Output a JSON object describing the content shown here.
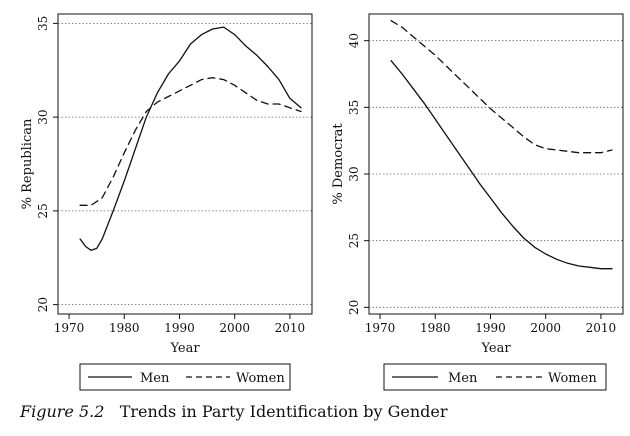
{
  "chart_data": [
    {
      "type": "line",
      "title": "",
      "xlabel": "Year",
      "ylabel": "% Republican",
      "xlim": [
        1968,
        2014
      ],
      "ylim": [
        19.5,
        35.5
      ],
      "xticks": [
        1970,
        1980,
        1990,
        2000,
        2010
      ],
      "yticks": [
        20,
        25,
        30,
        35
      ],
      "grid": "horizontal dotted",
      "series": [
        {
          "name": "Men",
          "style": "solid",
          "x": [
            1972,
            1973,
            1974,
            1975,
            1976,
            1978,
            1980,
            1982,
            1984,
            1986,
            1988,
            1990,
            1992,
            1994,
            1996,
            1998,
            2000,
            2002,
            2004,
            2006,
            2008,
            2010,
            2012
          ],
          "y": [
            23.5,
            23.1,
            22.9,
            23.0,
            23.5,
            25.0,
            26.6,
            28.3,
            30.0,
            31.3,
            32.3,
            33.0,
            33.9,
            34.4,
            34.7,
            34.8,
            34.4,
            33.8,
            33.3,
            32.7,
            32.0,
            31.0,
            30.5
          ]
        },
        {
          "name": "Women",
          "style": "dashed",
          "x": [
            1972,
            1974,
            1976,
            1978,
            1980,
            1982,
            1984,
            1986,
            1988,
            1990,
            1992,
            1994,
            1996,
            1998,
            2000,
            2002,
            2004,
            2006,
            2008,
            2010,
            2012
          ],
          "y": [
            25.3,
            25.3,
            25.7,
            26.8,
            28.1,
            29.3,
            30.3,
            30.8,
            31.1,
            31.4,
            31.7,
            32.0,
            32.1,
            32.0,
            31.7,
            31.3,
            30.9,
            30.7,
            30.7,
            30.5,
            30.3
          ]
        }
      ],
      "legend": [
        "Men",
        "Women"
      ],
      "legend_position": "bottom"
    },
    {
      "type": "line",
      "title": "",
      "xlabel": "Year",
      "ylabel": "% Democrat",
      "xlim": [
        1968,
        2014
      ],
      "ylim": [
        19.5,
        42
      ],
      "xticks": [
        1970,
        1980,
        1990,
        2000,
        2010
      ],
      "yticks": [
        20,
        25,
        30,
        35,
        40
      ],
      "grid": "horizontal dotted",
      "series": [
        {
          "name": "Men",
          "style": "solid",
          "x": [
            1972,
            1974,
            1976,
            1978,
            1980,
            1982,
            1984,
            1986,
            1988,
            1990,
            1992,
            1994,
            1996,
            1998,
            2000,
            2002,
            2004,
            2006,
            2008,
            2010,
            2012
          ],
          "y": [
            38.5,
            37.5,
            36.4,
            35.3,
            34.1,
            32.9,
            31.7,
            30.5,
            29.3,
            28.2,
            27.1,
            26.1,
            25.2,
            24.5,
            24.0,
            23.6,
            23.3,
            23.1,
            23.0,
            22.9,
            22.9
          ]
        },
        {
          "name": "Women",
          "style": "dashed",
          "x": [
            1972,
            1974,
            1976,
            1978,
            1980,
            1982,
            1984,
            1986,
            1988,
            1990,
            1992,
            1994,
            1996,
            1998,
            2000,
            2002,
            2004,
            2006,
            2008,
            2010,
            2012
          ],
          "y": [
            41.5,
            41.0,
            40.3,
            39.6,
            38.9,
            38.1,
            37.3,
            36.5,
            35.7,
            34.9,
            34.2,
            33.5,
            32.8,
            32.2,
            31.9,
            31.8,
            31.7,
            31.6,
            31.6,
            31.6,
            31.8
          ]
        }
      ],
      "legend": [
        "Men",
        "Women"
      ],
      "legend_position": "bottom"
    }
  ],
  "caption": {
    "figure_number": "Figure 5.2",
    "text": "Trends in Party Identification by Gender"
  }
}
